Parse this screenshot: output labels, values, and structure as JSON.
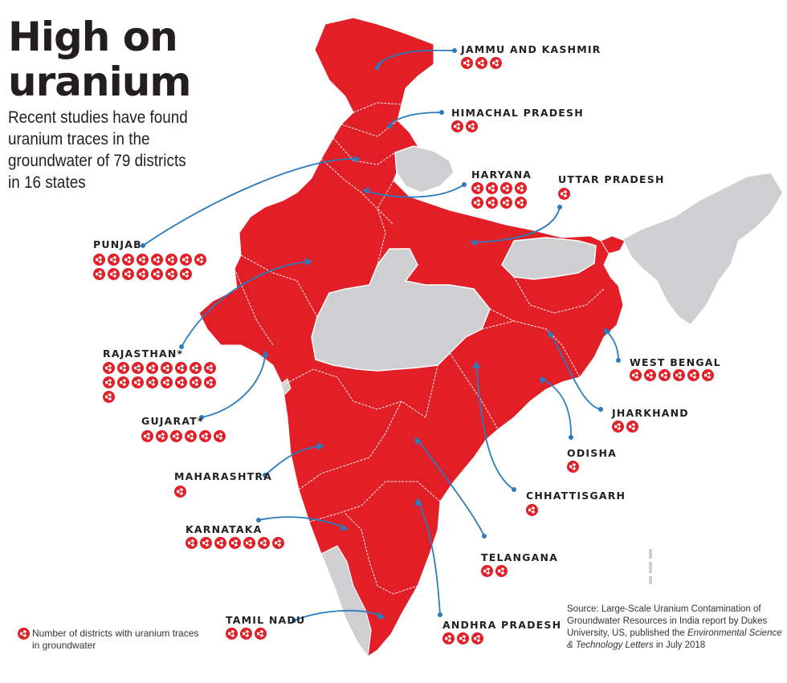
{
  "title_line1": "High on",
  "title_line2": "uranium",
  "subtitle": "Recent studies have found uranium traces in the groundwater of 79 districts in 16 states",
  "colors": {
    "affected": "#e21e26",
    "unaffected": "#cfcfd1",
    "arrow": "#2b7bbf",
    "text": "#231f20"
  },
  "states": [
    {
      "id": "jammu-kashmir",
      "name": "JAMMU AND KASHMIR",
      "districts": 3
    },
    {
      "id": "himachal-pradesh",
      "name": "HIMACHAL PRADESH",
      "districts": 2
    },
    {
      "id": "haryana",
      "name": "HARYANA",
      "districts": 8
    },
    {
      "id": "uttar-pradesh",
      "name": "UTTAR PRADESH",
      "districts": 1
    },
    {
      "id": "punjab",
      "name": "PUNJAB",
      "districts": 15
    },
    {
      "id": "rajasthan",
      "name": "RAJASTHAN*",
      "districts": 17
    },
    {
      "id": "gujarat",
      "name": "GUJARAT*",
      "districts": 6
    },
    {
      "id": "maharashtra",
      "name": "MAHARASHTRA",
      "districts": 1
    },
    {
      "id": "karnataka",
      "name": "KARNATAKA",
      "districts": 7
    },
    {
      "id": "tamil-nadu",
      "name": "TAMIL NADU",
      "districts": 3
    },
    {
      "id": "west-bengal",
      "name": "WEST BENGAL",
      "districts": 6
    },
    {
      "id": "jharkhand",
      "name": "JHARKHAND",
      "districts": 2
    },
    {
      "id": "odisha",
      "name": "ODISHA",
      "districts": 1
    },
    {
      "id": "chhattisgarh",
      "name": "CHHATTISGARH",
      "districts": 1
    },
    {
      "id": "telangana",
      "name": "TELANGANA",
      "districts": 2
    },
    {
      "id": "andhra-pradesh",
      "name": "ANDHRA PRADESH",
      "districts": 3
    }
  ],
  "legend": {
    "text": "Number of districts with uranium traces in groundwater",
    "icon": "radiation-icon"
  },
  "source": {
    "part1": "Source: Large-Scale Uranium Contamination of Groundwater Resources in India report by Dukes University, US, published the ",
    "journal": "Environmental Science & Technology Letters",
    "part2": " in July 2018"
  }
}
